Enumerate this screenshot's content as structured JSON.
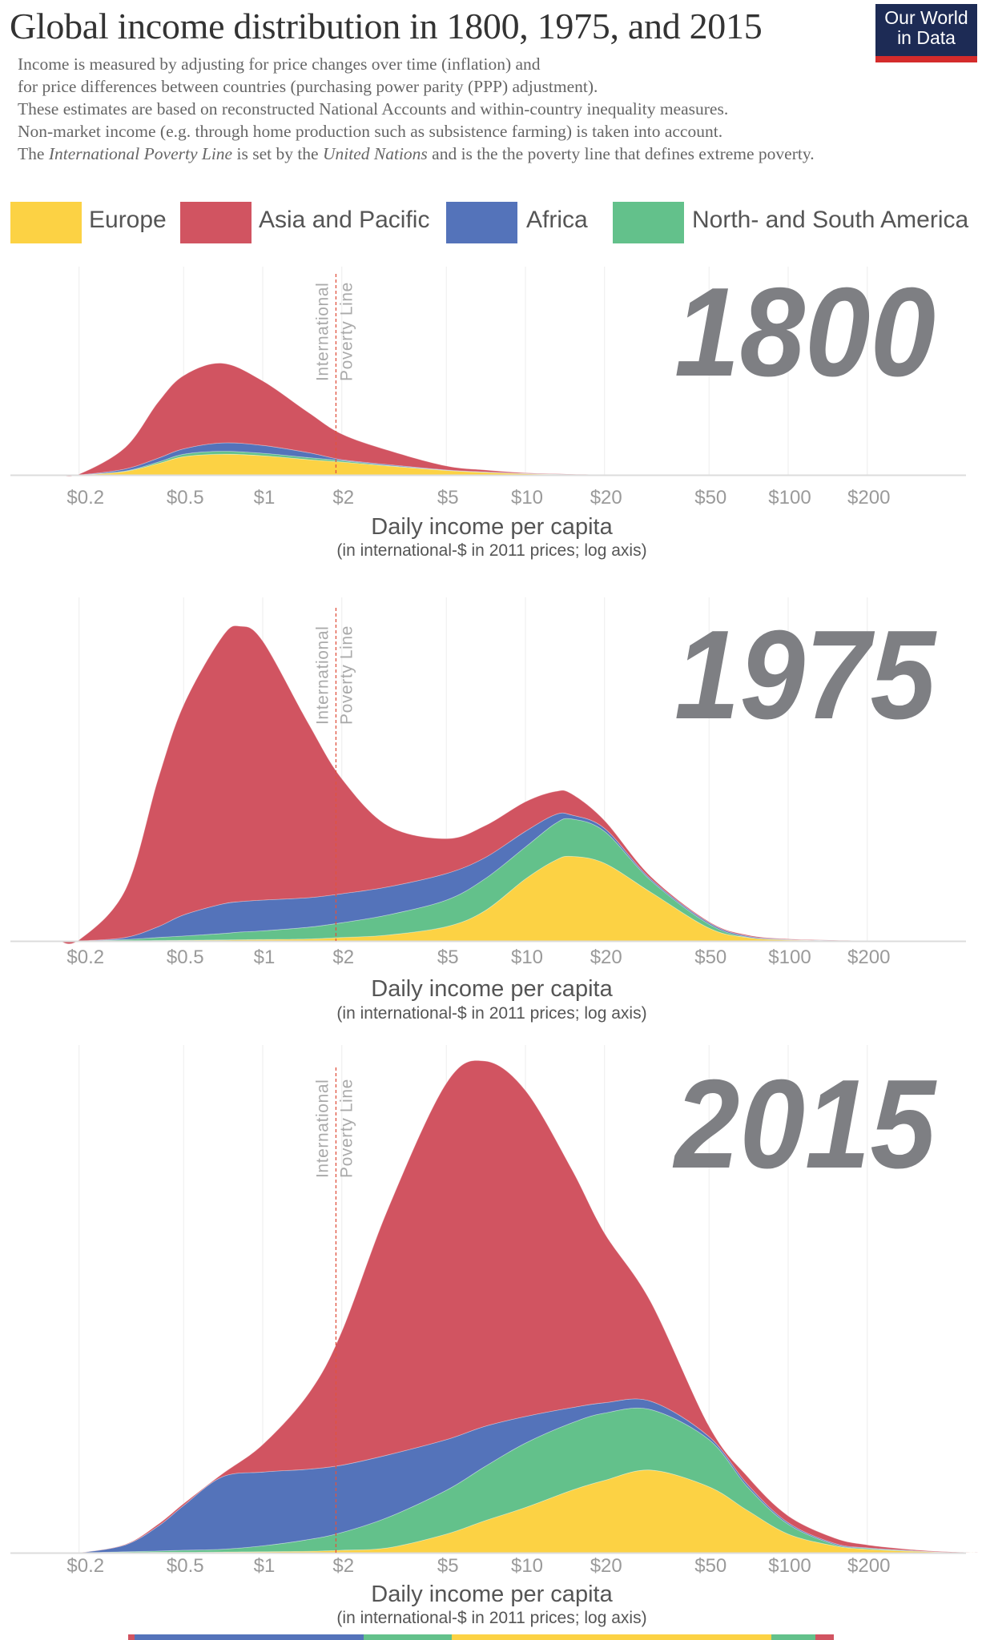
{
  "header": {
    "title": "Global income distribution in 1800, 1975, and 2015",
    "subtitle_lines": [
      "Income is measured by adjusting for price changes over time (inflation) and",
      "for price differences between countries (purchasing power parity (PPP) adjustment).",
      "These estimates are based on reconstructed National Accounts and within-country inequality measures.",
      "Non-market income (e.g. through home production such as subsistence farming) is taken into account."
    ],
    "subtitle_last": {
      "p1": "The ",
      "i1": "International Poverty Line",
      "p2": " is set by the ",
      "i2": "United Nations",
      "p3": " and is the the poverty line that defines extreme poverty."
    },
    "logo": {
      "line1": "Our World",
      "line2": "in Data",
      "bg_color": "#1d2b55",
      "bar_color": "#d42b2b"
    }
  },
  "legend": [
    {
      "label": "Europe",
      "color": "#fcd244"
    },
    {
      "label": "Asia and Pacific",
      "color": "#d15461"
    },
    {
      "label": "Africa",
      "color": "#5473ba"
    },
    {
      "label": "North- and South America",
      "color": "#63c18b"
    }
  ],
  "axis": {
    "scale": "log",
    "tick_values": [
      0.2,
      0.5,
      1,
      2,
      5,
      10,
      20,
      50,
      100,
      200
    ],
    "tick_labels": [
      "$0.2",
      "$0.5",
      "$1",
      "$2",
      "$5",
      "$10",
      "$20",
      "$50",
      "$100",
      "$200"
    ],
    "xlabel": "Daily income per capita",
    "xlabel_sub": "(in international-$ in 2011 prices; log axis)",
    "xlim": [
      0.14,
      500
    ],
    "grid": true
  },
  "poverty_line": {
    "value": 1.9,
    "label_line1": "International",
    "label_line2": "Poverty Line",
    "color": "#e0533f"
  },
  "chart_data": [
    {
      "type": "area",
      "stacked": true,
      "title": "1800",
      "x": [
        0.2,
        0.3,
        0.4,
        0.5,
        0.7,
        1,
        1.5,
        2,
        3,
        5,
        7,
        10,
        15,
        20
      ],
      "series": [
        {
          "name": "Europe",
          "values": [
            0,
            0.7,
            2.3,
            3.7,
            4.2,
            3.9,
            3.1,
            2.6,
            1.8,
            0.9,
            0.5,
            0.22,
            0.08,
            0.02
          ]
        },
        {
          "name": "North- and South America",
          "values": [
            0,
            0.1,
            0.3,
            0.5,
            0.6,
            0.5,
            0.4,
            0.3,
            0.1,
            0.05,
            0.05,
            0.03,
            0.02,
            0.01
          ]
        },
        {
          "name": "Africa",
          "values": [
            0,
            0.4,
            0.8,
            1.1,
            1.7,
            1.6,
            1.0,
            0.2,
            0.2,
            0.05,
            0.05,
            0.02,
            0,
            0
          ]
        },
        {
          "name": "Asia and Pacific",
          "values": [
            0.15,
            4.4,
            11.4,
            14.9,
            16.2,
            13.1,
            8.1,
            5.2,
            2.9,
            0.8,
            0.4,
            0.13,
            0.05,
            0.02
          ]
        }
      ]
    },
    {
      "type": "area",
      "stacked": true,
      "title": "1975",
      "x": [
        0.2,
        0.3,
        0.4,
        0.5,
        0.7,
        0.82,
        1,
        1.5,
        2,
        3,
        5,
        7,
        10,
        13,
        15,
        20,
        30,
        50,
        70,
        100,
        150,
        200
      ],
      "series": [
        {
          "name": "Europe",
          "values": [
            0,
            0.05,
            0.1,
            0.15,
            0.2,
            0.25,
            0.3,
            0.4,
            0.7,
            1.2,
            2.9,
            6.1,
            12.6,
            16.4,
            17.2,
            15.8,
            9.9,
            2.6,
            0.7,
            0.2,
            0.06,
            0.02
          ]
        },
        {
          "name": "North- and South America",
          "values": [
            0,
            0.25,
            0.6,
            0.85,
            1.3,
            1.55,
            1.75,
            2.4,
            3.0,
            4.1,
            5.4,
            6.5,
            6.5,
            7.5,
            7.6,
            6.5,
            2.4,
            0.8,
            0.1,
            0.05,
            0.02,
            0.01
          ]
        },
        {
          "name": "Africa",
          "values": [
            0,
            0.4,
            2.2,
            4.3,
            6.0,
            6.2,
            6.25,
            6.0,
            5.9,
            5.7,
            5.4,
            4.3,
            3.2,
            1.8,
            0.8,
            0.6,
            0.3,
            0.3,
            0.2,
            0.05,
            0.02,
            0.01
          ]
        },
        {
          "name": "Asia and Pacific",
          "values": [
            0.2,
            9.7,
            30.1,
            42.7,
            54.3,
            56.0,
            52.7,
            35.2,
            23.4,
            12.4,
            7.1,
            6.5,
            6.0,
            4.7,
            4.3,
            1.6,
            0.5,
            0.2,
            0.2,
            0.1,
            0.05,
            0.01
          ]
        }
      ]
    },
    {
      "type": "area",
      "stacked": true,
      "title": "2015",
      "x": [
        0.2,
        0.3,
        0.4,
        0.5,
        0.7,
        1,
        1.5,
        2,
        3,
        5,
        7,
        10,
        15,
        20,
        30,
        50,
        70,
        100,
        150,
        200,
        300,
        400
      ],
      "series": [
        {
          "name": "Europe",
          "values": [
            0,
            0.05,
            0.1,
            0.1,
            0.15,
            0.2,
            0.3,
            0.5,
            1.0,
            3.8,
            6.5,
            9.2,
            12.7,
            14.7,
            16.8,
            13.4,
            8.6,
            3.8,
            1.4,
            0.7,
            0.3,
            0.1
          ]
        },
        {
          "name": "North- and South America",
          "values": [
            0,
            0.15,
            0.25,
            0.4,
            0.55,
            1.2,
            2.4,
            3.6,
            6.2,
            8.9,
            11.0,
            13.1,
            13.7,
            13.7,
            12.3,
            9.6,
            4.8,
            2.0,
            0.3,
            0.2,
            0.05,
            0
          ]
        },
        {
          "name": "Africa",
          "values": [
            0,
            1.4,
            5.05,
            9.1,
            14.7,
            15.0,
            14.3,
            13.7,
            12.7,
            10.3,
            8.2,
            5.4,
            3.1,
            2.1,
            1.7,
            0.6,
            0.5,
            0.3,
            0.2,
            0.1,
            0.05,
            0
          ]
        },
        {
          "name": "Asia and Pacific",
          "values": [
            0,
            0.1,
            0.4,
            0.4,
            0.6,
            5.6,
            15.5,
            27.2,
            50.1,
            72.5,
            74.3,
            66.3,
            48.5,
            34.5,
            20.2,
            2.1,
            1.6,
            1.4,
            1.1,
            0.6,
            0.2,
            0.1
          ]
        }
      ]
    }
  ]
}
